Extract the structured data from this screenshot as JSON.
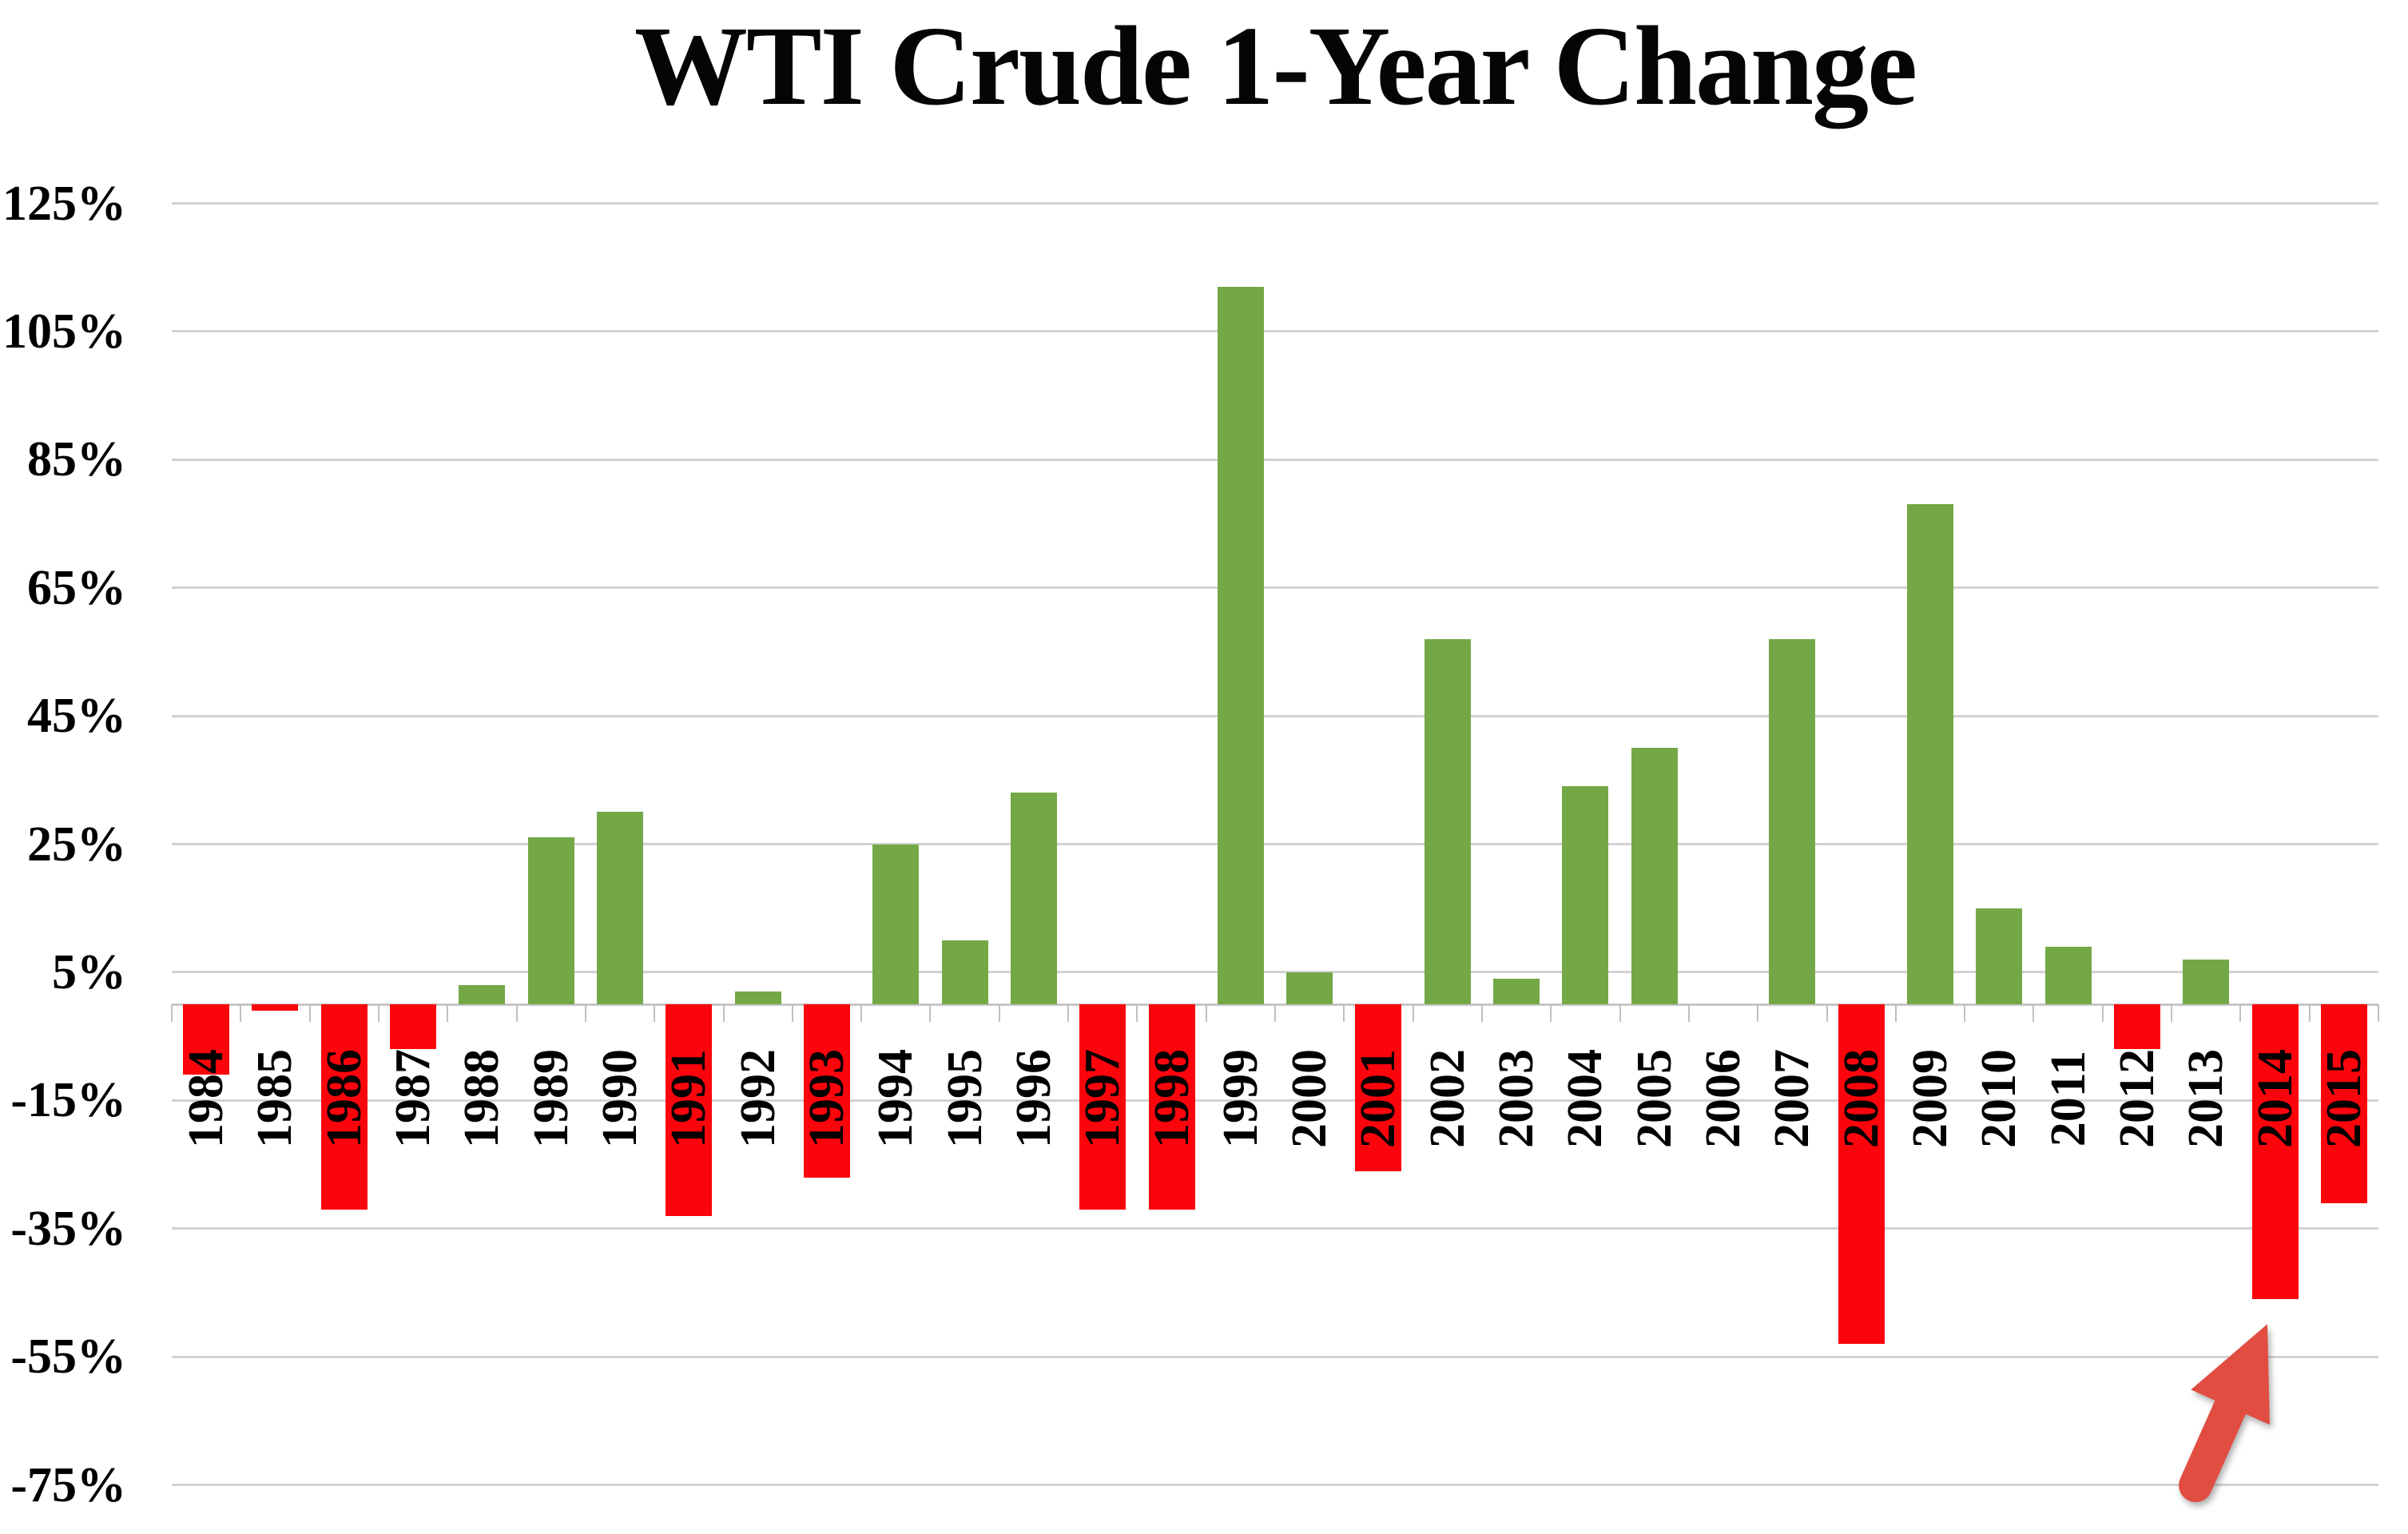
{
  "chart_data": {
    "type": "bar",
    "title": "WTI Crude 1-Year Change",
    "categories": [
      "1984",
      "1985",
      "1986",
      "1987",
      "1988",
      "1989",
      "1990",
      "1991",
      "1992",
      "1993",
      "1994",
      "1995",
      "1996",
      "1997",
      "1998",
      "1999",
      "2000",
      "2001",
      "2002",
      "2003",
      "2004",
      "2005",
      "2006",
      "2007",
      "2008",
      "2009",
      "2010",
      "2011",
      "2012",
      "2013",
      "2014",
      "2015"
    ],
    "values": [
      -11,
      -1,
      -32,
      -7,
      3,
      26,
      30,
      -33,
      2,
      -27,
      25,
      10,
      33,
      -32,
      -32,
      112,
      5,
      -26,
      57,
      4,
      34,
      40,
      0,
      57,
      -53,
      78,
      15,
      9,
      -7,
      7,
      -46,
      -31
    ],
    "xlabel": "",
    "ylabel": "",
    "ylim": [
      -75,
      125
    ],
    "grid": "horizontal",
    "legend_position": "none",
    "bar_color_positive": "#74A847",
    "bar_color_negative": "#FB040C",
    "annotation": {
      "type": "arrow",
      "points_at": "2014",
      "description": "red arrow pointing up at the 2014 bar"
    }
  },
  "y_axis": {
    "tick_labels": [
      "125%",
      "105%",
      "85%",
      "65%",
      "45%",
      "25%",
      "5%",
      "-15%",
      "-35%",
      "-55%",
      "-75%"
    ],
    "tick_values": [
      125,
      105,
      85,
      65,
      45,
      25,
      5,
      -15,
      -35,
      -55,
      -75
    ]
  },
  "colors": {
    "positive_bar": "#74A847",
    "negative_bar": "#FB040C",
    "arrow": "#E24D42",
    "gridline": "#D2D2D2",
    "axis_line": "#C6C6C6",
    "tick_mark": "#C0C0C0",
    "text": "#000000",
    "background": "#FFFFFF"
  }
}
